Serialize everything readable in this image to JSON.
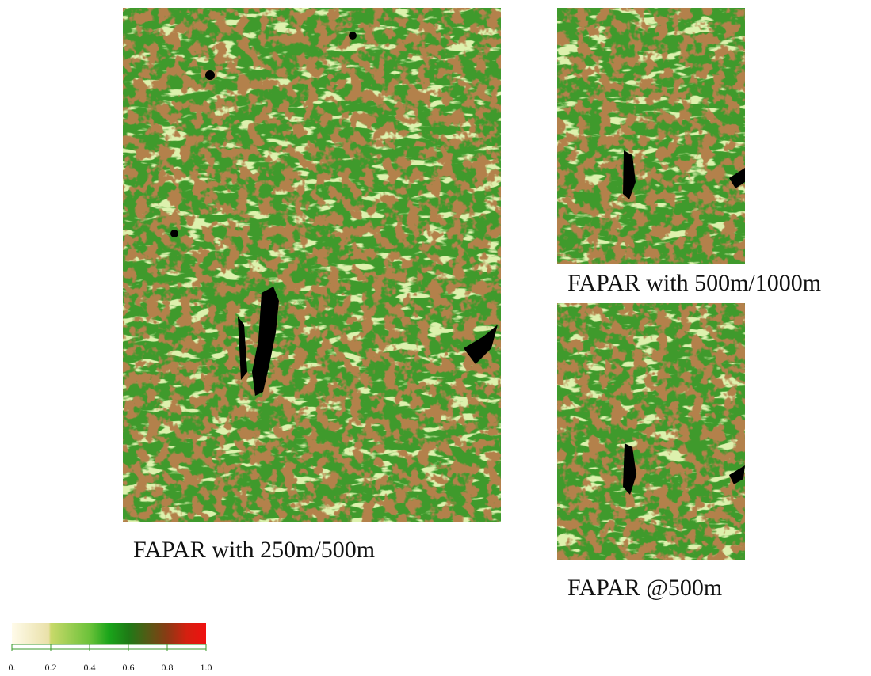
{
  "maps": [
    {
      "caption": "FAPAR with 250m/500m"
    },
    {
      "caption": "FAPAR with 500m/1000m"
    },
    {
      "caption": "FAPAR @500m"
    }
  ],
  "colorbar": {
    "range": [
      0,
      1
    ],
    "ticks": [
      {
        "value": 0,
        "label": "0."
      },
      0.2,
      0.4,
      0.6,
      0.8,
      {
        "value": 1,
        "label": "1.0"
      }
    ]
  }
}
